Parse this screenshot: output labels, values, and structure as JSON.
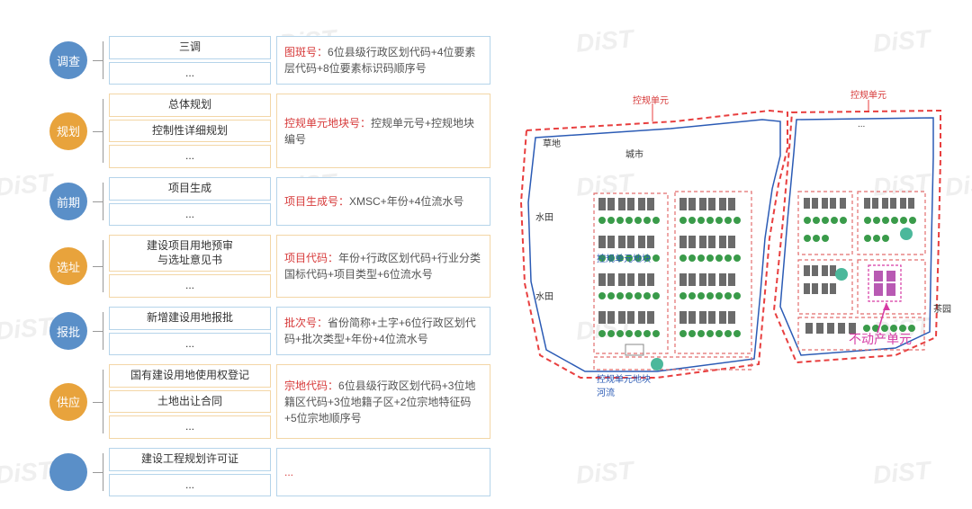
{
  "colors": {
    "circle_blue": "#5a8fc8",
    "circle_orange": "#e8a33c",
    "border_blue_light": "#b5d4ea",
    "border_orange_light": "#f3d6a6",
    "background": "#ffffff",
    "text_body": "#555555",
    "text_key": "#d73a3a",
    "map_boundary_red": "#e83f3f",
    "map_boundary_blue": "#2b5bb5",
    "map_plot_red": "#e26d6d",
    "map_building": "#6b6b6b",
    "map_tree": "#3a9b4a",
    "map_label_pink": "#d63aa4"
  },
  "typography": {
    "body_font": "Microsoft YaHei",
    "circle_fontsize": 13,
    "item_fontsize": 12,
    "desc_fontsize": 12,
    "map_label_fontsize": 10,
    "callout_fontsize": 14
  },
  "watermark_text": "DiST",
  "stages": [
    {
      "id": "survey",
      "label": "调查",
      "color": "blue",
      "items": [
        "三调",
        "..."
      ],
      "desc_key": "图斑号：",
      "desc_body": "6位县级行政区划代码+4位要素层代码+8位要素标识码顺序号"
    },
    {
      "id": "planning",
      "label": "规划",
      "color": "orange",
      "items": [
        "总体规划",
        "控制性详细规划",
        "..."
      ],
      "desc_key": "控规单元地块号：",
      "desc_body": "控规单元号+控规地块编号"
    },
    {
      "id": "pre",
      "label": "前期",
      "color": "blue",
      "items": [
        "项目生成",
        "..."
      ],
      "desc_key": "项目生成号：",
      "desc_body": "XMSC+年份+4位流水号"
    },
    {
      "id": "site",
      "label": "选址",
      "color": "orange",
      "items": [
        "建设项目用地预审\n与选址意见书",
        "..."
      ],
      "desc_key": "项目代码：",
      "desc_body": "年份+行政区划代码+行业分类国标代码+项目类型+6位流水号"
    },
    {
      "id": "approval",
      "label": "报批",
      "color": "blue",
      "items": [
        "新增建设用地报批",
        "..."
      ],
      "desc_key": "批次号：",
      "desc_body": "省份简称+土字+6位行政区划代码+批次类型+年份+4位流水号"
    },
    {
      "id": "supply",
      "label": "供应",
      "color": "orange",
      "items": [
        "国有建设用地使用权登记",
        "土地出让合同",
        "..."
      ],
      "desc_key": "宗地代码：",
      "desc_body": "6位县级行政区划代码+3位地籍区代码+3位地籍子区+2位宗地特征码+5位宗地顺序号"
    },
    {
      "id": "permit",
      "label": "",
      "color": "blue",
      "items": [
        "建设工程规划许可证",
        "..."
      ],
      "desc_key": "...",
      "desc_body": ""
    }
  ],
  "map_labels": {
    "top_left": "控规单元",
    "top_right": "控规单元",
    "ellipsis": "...",
    "grass": "草地",
    "city": "城市",
    "paddy1": "水田",
    "paddy2": "水田",
    "plot": "控规单元地块",
    "river": "控规单元地块\n河流",
    "tea": "茶园",
    "callout": "不动产单元"
  }
}
